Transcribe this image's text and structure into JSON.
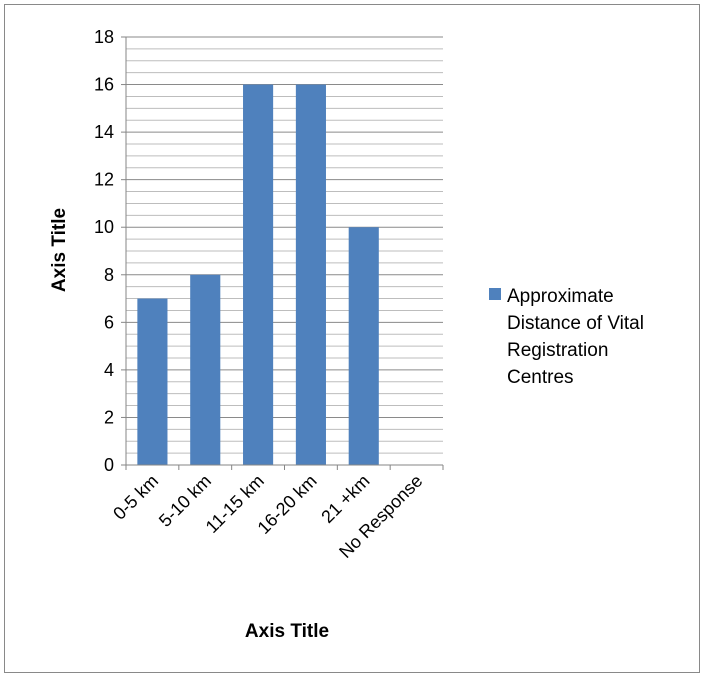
{
  "chart_data": {
    "type": "bar",
    "categories": [
      "0-5 km",
      "5-10 km",
      "11-15 km",
      "16-20 km",
      "21 +km",
      "No Response"
    ],
    "series": [
      {
        "name": "Approximate Distance of Vital Registration Centres",
        "values": [
          7,
          8,
          16,
          16,
          10,
          0
        ],
        "color": "#4f81bd"
      }
    ],
    "xlabel": "Axis Title",
    "ylabel": "Axis Title",
    "ylim": [
      0,
      18
    ],
    "y_ticks": [
      0,
      2,
      4,
      6,
      8,
      10,
      12,
      14,
      16,
      18
    ],
    "y_tick_labels": [
      "0",
      "2",
      "4",
      "6",
      "8",
      "10",
      "12",
      "14",
      "16",
      "18"
    ],
    "grid": true,
    "minor_grid_step": 0.5,
    "legend_position": "right",
    "legend_lines": [
      "Approximate",
      "Distance of Vital",
      "Registration",
      "Centres"
    ]
  }
}
